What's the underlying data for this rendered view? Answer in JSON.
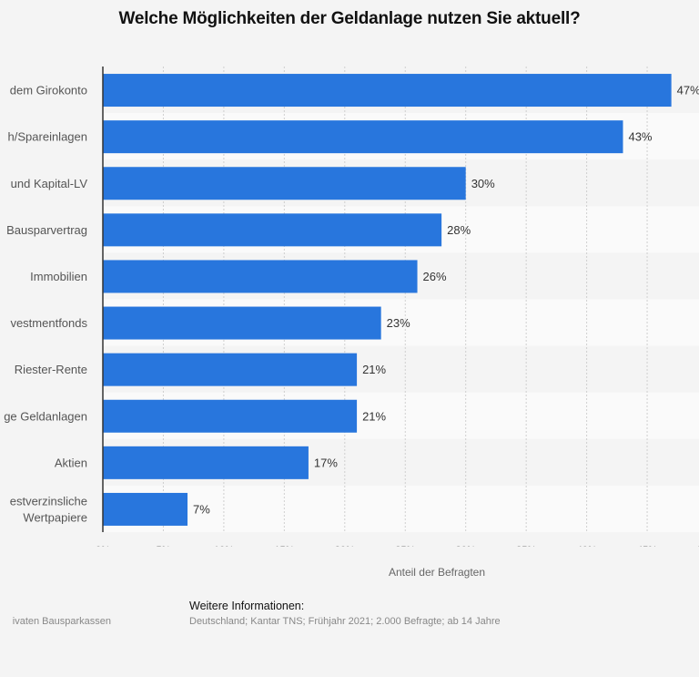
{
  "title": "Welche Möglichkeiten der Geldanlage nutzen Sie aktuell?",
  "chart_data": {
    "type": "bar",
    "orientation": "horizontal",
    "title": "Welche Möglichkeiten der Geldanlage nutzen Sie aktuell?",
    "categories": [
      "dem Girokonto",
      "h/Spareinlagen",
      "und Kapital-LV",
      "Bausparvertrag",
      "Immobilien",
      "vestmentfonds",
      "Riester-Rente",
      "ge Geldanlagen",
      "Aktien",
      "estverzinsliche\nWertpapiere"
    ],
    "values": [
      47,
      43,
      30,
      28,
      26,
      23,
      21,
      21,
      17,
      7
    ],
    "data_labels": [
      "47%",
      "43%",
      "30%",
      "28%",
      "26%",
      "23%",
      "21%",
      "21%",
      "17%",
      "7%"
    ],
    "xlabel": "Anteil der Befragten",
    "ylabel": "",
    "xlim": [
      0,
      50
    ],
    "ticks": [
      "0%",
      "5%",
      "10%",
      "15%",
      "20%",
      "25%",
      "30%",
      "35%",
      "40%",
      "45%",
      "50%"
    ],
    "grid": true,
    "bar_color": "#2876dd"
  },
  "footer": {
    "source_text": "ivaten Bausparkassen",
    "info_heading": "Weitere Informationen:",
    "info_text": "Deutschland; Kantar TNS; Frühjahr 2021; 2.000 Befragte; ab 14 Jahre"
  }
}
